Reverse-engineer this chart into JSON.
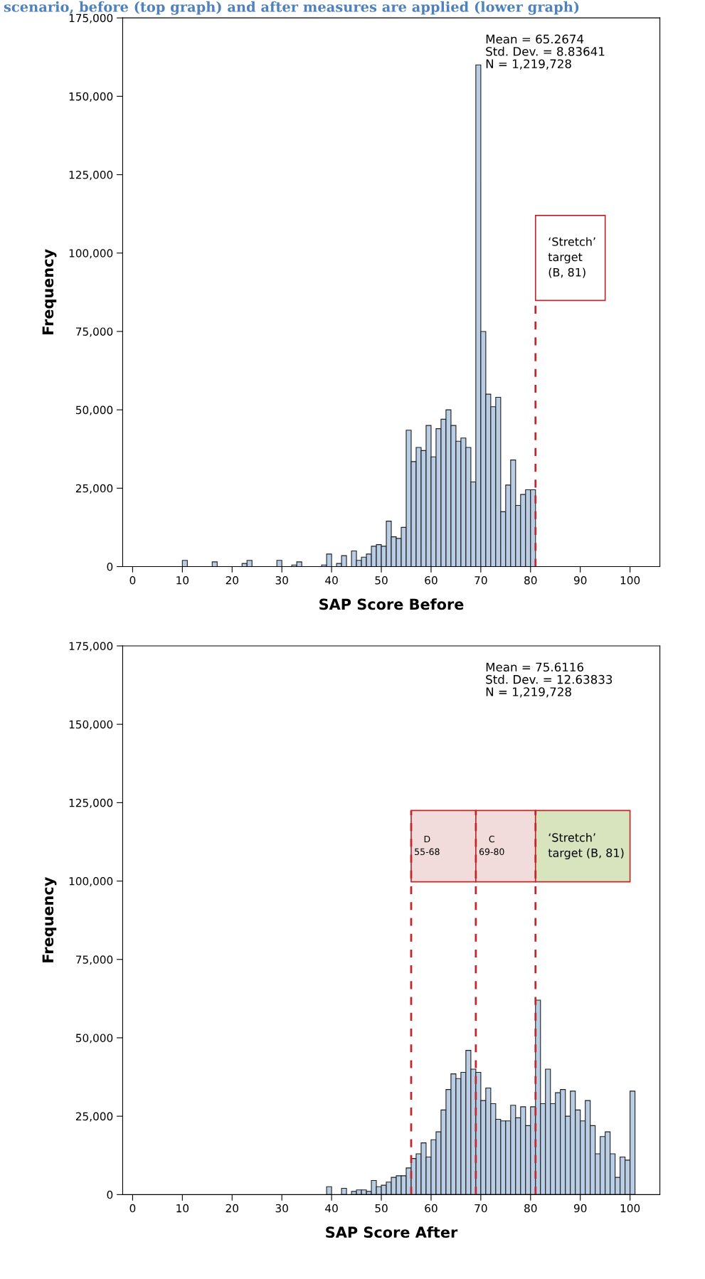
{
  "chart_data": [
    {
      "type": "histogram",
      "title": "scenario, before (top graph) and after measures are applied (lower graph)",
      "xlabel": "SAP Score Before",
      "ylabel": "Frequency",
      "color": "#b9cde5",
      "bins": [
        10,
        11,
        12,
        13,
        14,
        15,
        16,
        17,
        18,
        19,
        20,
        21,
        22,
        23,
        24,
        25,
        26,
        27,
        28,
        29,
        30,
        31,
        32,
        33,
        34,
        35,
        36,
        37,
        38,
        39,
        40,
        41,
        42,
        43,
        44,
        45,
        46,
        47,
        48,
        49,
        50,
        51,
        52,
        53,
        54,
        55,
        56,
        57,
        58,
        59,
        60,
        61,
        62,
        63,
        64,
        65,
        66,
        67,
        68,
        69,
        70,
        71,
        72,
        73,
        74,
        75,
        76,
        77,
        78,
        79,
        80,
        81
      ],
      "values": [
        2000,
        0,
        0,
        0,
        0,
        0,
        1500,
        0,
        0,
        0,
        0,
        0,
        1000,
        2000,
        0,
        0,
        0,
        0,
        0,
        2000,
        0,
        0,
        500,
        1500,
        0,
        0,
        0,
        0,
        500,
        4000,
        0,
        1000,
        3500,
        0,
        5000,
        2000,
        3000,
        4000,
        6500,
        7000,
        6500,
        14500,
        9500,
        9000,
        12500,
        43500,
        33500,
        38000,
        37000,
        45000,
        35000,
        44000,
        47000,
        50000,
        45000,
        40000,
        41000,
        38000,
        27000,
        160000,
        75000,
        55000,
        51000,
        54000,
        17500,
        26000,
        34000,
        19500,
        23000,
        24500,
        24500
      ],
      "xlim": [
        -2,
        106
      ],
      "ylim": [
        0,
        175000
      ],
      "xticks": [
        0,
        10,
        20,
        30,
        40,
        50,
        60,
        70,
        80,
        90,
        100
      ],
      "yticks": [
        {
          "value": 0,
          "label": "0"
        },
        {
          "value": 25000,
          "label": "25,000"
        },
        {
          "value": 50000,
          "label": "50,000"
        },
        {
          "value": 75000,
          "label": "75,000"
        },
        {
          "value": 100000,
          "label": "100,000"
        },
        {
          "value": 125000,
          "label": "125,000"
        },
        {
          "value": 150000,
          "label": "150,000"
        },
        {
          "value": 175000,
          "label": "175,000"
        }
      ],
      "annotations": [
        "Mean = 65.2674\nStd. Dev. = 8.83641\nN = 1,219,728"
      ],
      "ref_lines": [
        {
          "axis": "x",
          "value": 81,
          "label": "‘Stretch’\ntarget\n(B, 81)",
          "color": "#c0282d",
          "line_style": "dashed"
        }
      ],
      "grid": false,
      "legend": false
    },
    {
      "type": "histogram",
      "xlabel": "SAP Score After",
      "ylabel": "Frequency",
      "color": "#b9cde5",
      "bins": [
        39,
        40,
        41,
        42,
        43,
        44,
        45,
        46,
        47,
        48,
        49,
        50,
        51,
        52,
        53,
        54,
        55,
        56,
        57,
        58,
        59,
        60,
        61,
        62,
        63,
        64,
        65,
        66,
        67,
        68,
        69,
        70,
        71,
        72,
        73,
        74,
        75,
        76,
        77,
        78,
        79,
        80,
        81,
        82,
        83,
        84,
        85,
        86,
        87,
        88,
        89,
        90,
        91,
        92,
        93,
        94,
        95,
        96,
        97,
        98,
        99,
        100,
        101
      ],
      "values": [
        2500,
        0,
        0,
        2000,
        0,
        1000,
        1500,
        1500,
        1000,
        4500,
        2500,
        3000,
        4000,
        5500,
        6000,
        6000,
        8500,
        11500,
        13000,
        16500,
        12000,
        17500,
        20000,
        27000,
        33500,
        38500,
        37000,
        39000,
        46000,
        40000,
        39000,
        30000,
        34000,
        29000,
        24000,
        23500,
        23500,
        28500,
        24500,
        28000,
        22000,
        28000,
        62000,
        29000,
        40000,
        29000,
        32500,
        33500,
        25000,
        33000,
        27000,
        23500,
        30000,
        22000,
        13000,
        18500,
        20000,
        13000,
        5500,
        12000,
        11000,
        33000
      ],
      "xlim": [
        -2,
        106
      ],
      "ylim": [
        0,
        175000
      ],
      "xticks": [
        0,
        10,
        20,
        30,
        40,
        50,
        60,
        70,
        80,
        90,
        100
      ],
      "yticks": [
        {
          "value": 0,
          "label": "0"
        },
        {
          "value": 25000,
          "label": "25,000"
        },
        {
          "value": 50000,
          "label": "50,000"
        },
        {
          "value": 75000,
          "label": "75,000"
        },
        {
          "value": 100000,
          "label": "100,000"
        },
        {
          "value": 125000,
          "label": "125,000"
        },
        {
          "value": 150000,
          "label": "150,000"
        },
        {
          "value": 175000,
          "label": "175,000"
        }
      ],
      "annotations": [
        "Mean = 75.6116\nStd. Dev. = 12.63833\nN = 1,219,728"
      ],
      "ref_lines": [
        {
          "axis": "x",
          "value": 56,
          "label": "D\n55-68",
          "color": "#c0282d",
          "line_style": "dashed"
        },
        {
          "axis": "x",
          "value": 69,
          "label": "C\n69-80",
          "color": "#c0282d",
          "line_style": "dashed"
        },
        {
          "axis": "x",
          "value": 81,
          "label": "‘Stretch’\ntarget (B, 81)",
          "color": "#c0282d",
          "line_style": "dashed"
        }
      ],
      "grid": false,
      "legend": false
    }
  ]
}
